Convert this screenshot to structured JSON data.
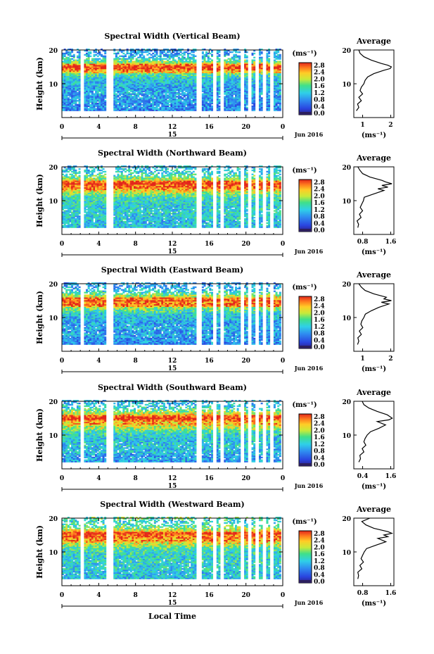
{
  "figure": {
    "xlabel": "Local Time",
    "colorbar_unit": "(ms⁻¹)",
    "colorbar_ticks": [
      "0.0",
      "0.4",
      "0.8",
      "1.2",
      "1.6",
      "2.0",
      "2.4",
      "2.8"
    ],
    "date_day": "15",
    "date_label": "Jun 2016",
    "ylabel": "Height (km)",
    "profile_title": "Average",
    "profile_xlabel": "(ms⁻¹)"
  },
  "chart_data": [
    {
      "type": "heatmap",
      "title": "Spectral Width (Vertical Beam)",
      "xlim": [
        0,
        24
      ],
      "ylim": [
        0,
        20
      ],
      "xticks": [
        "0",
        "4",
        "8",
        "12",
        "16",
        "20",
        "0"
      ],
      "yticks": [
        "10",
        "20"
      ],
      "clim": [
        0.0,
        2.8
      ],
      "gaps": [
        [
          2.0,
          2.35
        ],
        [
          4.85,
          5.1
        ],
        [
          5.25,
          5.5
        ],
        [
          14.6,
          15.0
        ],
        [
          16.4,
          16.75
        ],
        [
          17.35,
          17.55
        ],
        [
          19.4,
          19.6
        ],
        [
          20.2,
          20.4
        ],
        [
          21.0,
          21.2
        ],
        [
          21.9,
          22.1
        ],
        [
          22.6,
          22.8
        ]
      ],
      "profile": {
        "xlim": [
          0.5,
          2.1
        ],
        "xticks": [
          "1",
          "2"
        ],
        "ylim": [
          0,
          20
        ],
        "yticks": [
          "10",
          "20"
        ],
        "points": [
          [
            2,
            0.6
          ],
          [
            3,
            0.7
          ],
          [
            4,
            0.65
          ],
          [
            5,
            0.8
          ],
          [
            6,
            0.7
          ],
          [
            7,
            0.85
          ],
          [
            8,
            0.75
          ],
          [
            9,
            0.8
          ],
          [
            10,
            0.9
          ],
          [
            11,
            0.95
          ],
          [
            12,
            1.05
          ],
          [
            13,
            1.3
          ],
          [
            14,
            1.7
          ],
          [
            14.5,
            1.95
          ],
          [
            15,
            2.0
          ],
          [
            15.5,
            1.85
          ],
          [
            16,
            1.6
          ],
          [
            17,
            1.2
          ],
          [
            18,
            0.9
          ],
          [
            19,
            0.75
          ],
          [
            20,
            0.7
          ]
        ]
      }
    },
    {
      "type": "heatmap",
      "title": "Spectral Width (Northward Beam)",
      "xlim": [
        0,
        24
      ],
      "ylim": [
        0,
        20
      ],
      "xticks": [
        "0",
        "4",
        "8",
        "12",
        "16",
        "20",
        "0"
      ],
      "yticks": [
        "10",
        "20"
      ],
      "clim": [
        0.0,
        2.8
      ],
      "gaps": [
        [
          2.0,
          2.35
        ],
        [
          4.85,
          5.1
        ],
        [
          5.25,
          5.5
        ],
        [
          14.6,
          15.0
        ],
        [
          16.4,
          16.75
        ],
        [
          17.35,
          17.55
        ],
        [
          19.4,
          19.6
        ],
        [
          20.2,
          20.4
        ],
        [
          21.0,
          21.2
        ],
        [
          21.9,
          22.1
        ],
        [
          22.6,
          22.8
        ]
      ],
      "profile": {
        "xlim": [
          0.6,
          1.6
        ],
        "xticks": [
          "0.8",
          "1.6"
        ],
        "ylim": [
          0,
          20
        ],
        "yticks": [
          "10",
          "20"
        ],
        "points": [
          [
            2,
            0.7
          ],
          [
            3,
            0.72
          ],
          [
            4,
            0.68
          ],
          [
            5,
            0.78
          ],
          [
            6,
            0.74
          ],
          [
            7,
            0.82
          ],
          [
            8,
            0.76
          ],
          [
            9,
            0.8
          ],
          [
            10,
            0.84
          ],
          [
            11,
            0.86
          ],
          [
            12,
            1.1
          ],
          [
            13,
            1.35
          ],
          [
            13.5,
            1.2
          ],
          [
            14,
            1.45
          ],
          [
            14.5,
            1.3
          ],
          [
            15,
            1.55
          ],
          [
            15.5,
            1.4
          ],
          [
            16,
            1.3
          ],
          [
            17,
            1.0
          ],
          [
            18,
            0.82
          ],
          [
            19,
            0.75
          ],
          [
            20,
            0.7
          ]
        ]
      }
    },
    {
      "type": "heatmap",
      "title": "Spectral Width (Eastward Beam)",
      "xlim": [
        0,
        24
      ],
      "ylim": [
        0,
        20
      ],
      "xticks": [
        "0",
        "4",
        "8",
        "12",
        "16",
        "20",
        "0"
      ],
      "yticks": [
        "10",
        "20"
      ],
      "clim": [
        0.0,
        2.8
      ],
      "gaps": [
        [
          2.0,
          2.35
        ],
        [
          4.85,
          5.1
        ],
        [
          5.25,
          5.5
        ],
        [
          14.6,
          15.0
        ],
        [
          16.4,
          16.75
        ],
        [
          17.35,
          17.55
        ],
        [
          19.4,
          19.6
        ],
        [
          20.2,
          20.4
        ],
        [
          21.0,
          21.2
        ],
        [
          21.9,
          22.1
        ],
        [
          22.6,
          22.8
        ]
      ],
      "profile": {
        "xlim": [
          0.5,
          2.1
        ],
        "xticks": [
          "1",
          "2"
        ],
        "ylim": [
          0,
          20
        ],
        "yticks": [
          "10",
          "20"
        ],
        "points": [
          [
            2,
            0.65
          ],
          [
            3,
            0.7
          ],
          [
            4,
            0.66
          ],
          [
            5,
            0.8
          ],
          [
            6,
            0.72
          ],
          [
            7,
            0.86
          ],
          [
            8,
            0.78
          ],
          [
            9,
            0.82
          ],
          [
            10,
            0.9
          ],
          [
            11,
            0.96
          ],
          [
            12,
            1.2
          ],
          [
            13,
            1.5
          ],
          [
            14,
            1.9
          ],
          [
            14.5,
            1.6
          ],
          [
            15,
            2.0
          ],
          [
            15.5,
            1.7
          ],
          [
            16,
            1.8
          ],
          [
            17,
            1.3
          ],
          [
            18,
            0.95
          ],
          [
            19,
            0.8
          ],
          [
            20,
            0.7
          ]
        ]
      }
    },
    {
      "type": "heatmap",
      "title": "Spectral Width (Southward Beam)",
      "xlim": [
        0,
        24
      ],
      "ylim": [
        0,
        20
      ],
      "xticks": [
        "0",
        "4",
        "8",
        "12",
        "16",
        "20",
        "0"
      ],
      "yticks": [
        "10",
        "20"
      ],
      "clim": [
        0.0,
        2.8
      ],
      "gaps": [
        [
          2.0,
          2.35
        ],
        [
          4.85,
          5.1
        ],
        [
          5.25,
          5.5
        ],
        [
          14.6,
          15.0
        ],
        [
          16.4,
          16.75
        ],
        [
          17.35,
          17.55
        ],
        [
          19.4,
          19.6
        ],
        [
          20.2,
          20.4
        ],
        [
          21.0,
          21.2
        ],
        [
          21.9,
          22.1
        ],
        [
          22.6,
          22.8
        ]
      ],
      "profile": {
        "xlim": [
          0.4,
          1.6
        ],
        "xticks": [
          "0.4",
          "1.6"
        ],
        "ylim": [
          0,
          20
        ],
        "yticks": [
          "10",
          "20"
        ],
        "points": [
          [
            2,
            0.55
          ],
          [
            3,
            0.6
          ],
          [
            4,
            0.58
          ],
          [
            5,
            0.7
          ],
          [
            6,
            0.65
          ],
          [
            7,
            0.76
          ],
          [
            8,
            0.7
          ],
          [
            9,
            0.74
          ],
          [
            10,
            0.8
          ],
          [
            11,
            0.9
          ],
          [
            12,
            1.15
          ],
          [
            13,
            1.35
          ],
          [
            14,
            1.1
          ],
          [
            14.5,
            1.45
          ],
          [
            15,
            1.55
          ],
          [
            16,
            1.4
          ],
          [
            17,
            1.1
          ],
          [
            18,
            0.85
          ],
          [
            19,
            0.7
          ],
          [
            20,
            0.65
          ]
        ]
      }
    },
    {
      "type": "heatmap",
      "title": "Spectral Width (Westward Beam)",
      "xlim": [
        0,
        24
      ],
      "ylim": [
        0,
        20
      ],
      "xticks": [
        "0",
        "4",
        "8",
        "12",
        "16",
        "20",
        "0"
      ],
      "yticks": [
        "10",
        "20"
      ],
      "clim": [
        0.0,
        2.8
      ],
      "gaps": [
        [
          2.0,
          2.35
        ],
        [
          4.85,
          5.1
        ],
        [
          5.25,
          5.5
        ],
        [
          14.6,
          15.0
        ],
        [
          16.4,
          16.75
        ],
        [
          17.35,
          17.55
        ],
        [
          19.4,
          19.6
        ],
        [
          20.2,
          20.4
        ],
        [
          21.0,
          21.2
        ],
        [
          21.9,
          22.1
        ],
        [
          22.6,
          22.8
        ]
      ],
      "profile": {
        "xlim": [
          0.6,
          1.6
        ],
        "xticks": [
          "0.8",
          "1.6"
        ],
        "ylim": [
          0,
          20
        ],
        "yticks": [
          "10",
          "20"
        ],
        "points": [
          [
            2,
            0.7
          ],
          [
            3,
            0.72
          ],
          [
            4,
            0.7
          ],
          [
            5,
            0.8
          ],
          [
            6,
            0.75
          ],
          [
            7,
            0.84
          ],
          [
            8,
            0.78
          ],
          [
            9,
            0.82
          ],
          [
            10,
            0.86
          ],
          [
            11,
            0.92
          ],
          [
            12,
            1.15
          ],
          [
            13,
            1.4
          ],
          [
            14,
            1.2
          ],
          [
            14.5,
            1.45
          ],
          [
            15,
            1.35
          ],
          [
            15.5,
            1.55
          ],
          [
            16,
            1.45
          ],
          [
            17,
            1.1
          ],
          [
            18,
            0.9
          ],
          [
            19,
            0.8
          ],
          [
            20,
            1.0
          ]
        ]
      }
    }
  ]
}
